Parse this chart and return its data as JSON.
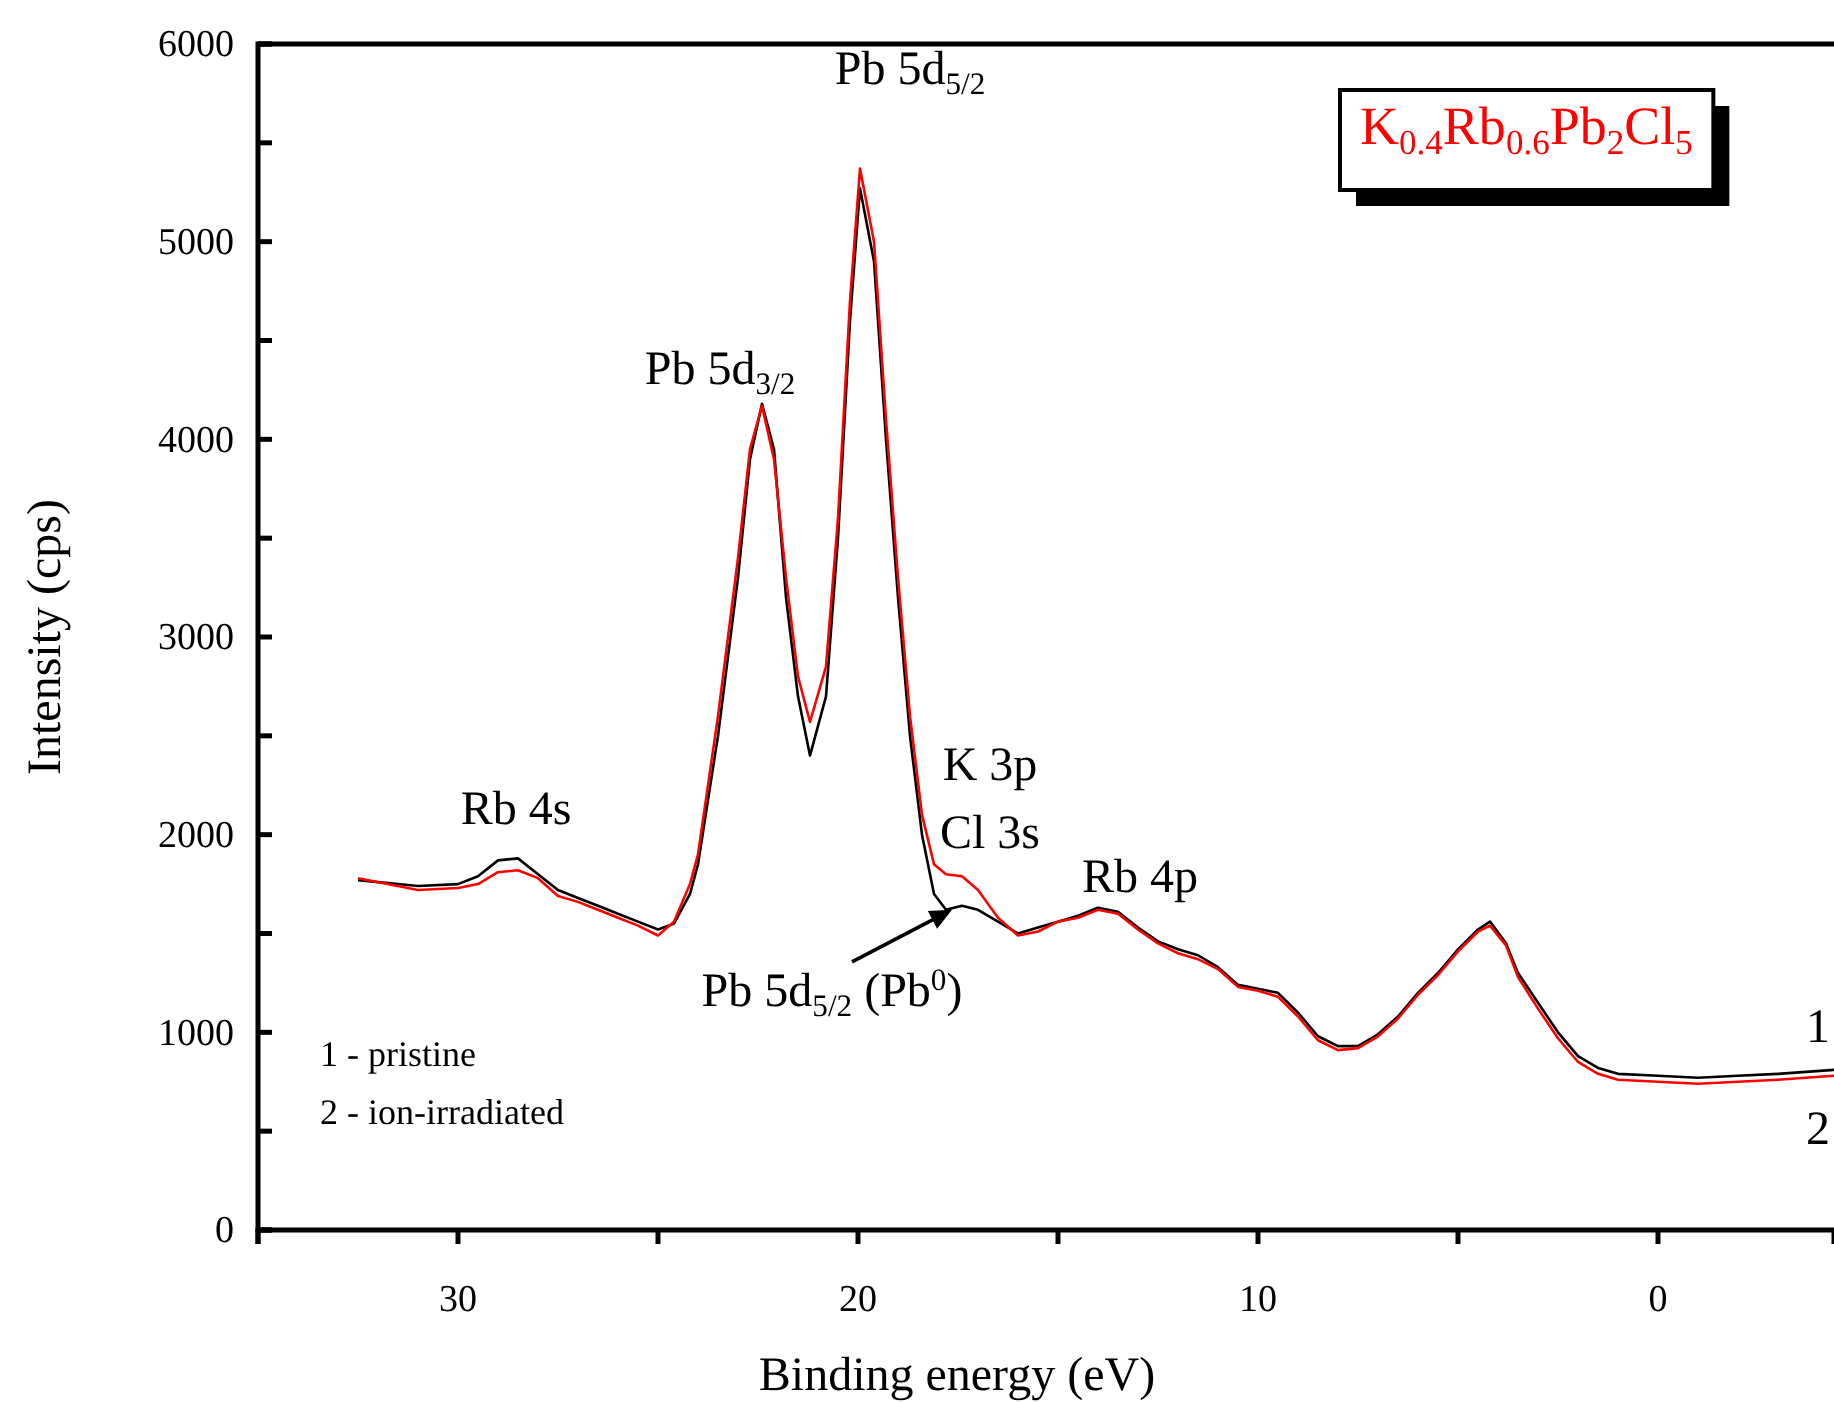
{
  "chart_data": {
    "type": "line",
    "title": "K$_{0.4}$Rb$_{0.6}$Pb$_{2}$Cl$_{5}$",
    "xlabel": "Binding energy (eV)",
    "ylabel": "Intensity (cps)",
    "xlim": [
      35,
      -4.4
    ],
    "xticks": [
      {
        "value": 35,
        "label": null
      },
      30,
      {
        "value": 25,
        "label": null
      },
      20,
      {
        "value": 15,
        "label": null
      },
      10,
      {
        "value": 5,
        "label": null
      },
      0
    ],
    "ylim": [
      0,
      6000
    ],
    "yticks": [
      0,
      {
        "value": 500,
        "label": null
      },
      1000,
      {
        "value": 1500,
        "label": null
      },
      2000,
      {
        "value": 2500,
        "label": null
      },
      3000,
      {
        "value": 3500,
        "label": null
      },
      4000,
      {
        "value": 4500,
        "label": null
      },
      5000,
      {
        "value": 5500,
        "label": null
      },
      6000
    ],
    "grid": false,
    "legend": false,
    "line_style": "solid",
    "marker": "none",
    "x": [
      32.5,
      31,
      30,
      29.5,
      29,
      28.5,
      28,
      27.5,
      27,
      26.5,
      26,
      25.5,
      25,
      24.6,
      24.2,
      24,
      23.5,
      23,
      22.7,
      22.4,
      22.1,
      21.8,
      21.5,
      21.2,
      20.8,
      20.5,
      20.2,
      19.95,
      19.6,
      19.3,
      19,
      18.7,
      18.4,
      18.1,
      17.8,
      17.4,
      17,
      16.5,
      16,
      15.5,
      15,
      14.5,
      14,
      13.5,
      13,
      12.5,
      12,
      11.5,
      11,
      10.5,
      10,
      9.5,
      9,
      8.5,
      8,
      7.5,
      7,
      6.5,
      6,
      5.5,
      5,
      4.5,
      4.2,
      3.8,
      3.5,
      3,
      2.5,
      2,
      1.5,
      1,
      0,
      -1,
      -2,
      -3,
      -4.4
    ],
    "series": [
      {
        "name": "1",
        "color": "#000000",
        "values": [
          1770,
          1740,
          1750,
          1790,
          1870,
          1880,
          1800,
          1720,
          1680,
          1640,
          1600,
          1560,
          1520,
          1550,
          1700,
          1850,
          2500,
          3300,
          3900,
          4180,
          3950,
          3200,
          2700,
          2400,
          2700,
          3500,
          4600,
          5270,
          4900,
          4000,
          3200,
          2500,
          2000,
          1700,
          1620,
          1640,
          1620,
          1560,
          1500,
          1530,
          1560,
          1590,
          1630,
          1610,
          1530,
          1460,
          1420,
          1390,
          1330,
          1240,
          1220,
          1200,
          1100,
          980,
          930,
          930,
          990,
          1080,
          1200,
          1300,
          1420,
          1520,
          1560,
          1450,
          1300,
          1150,
          1000,
          880,
          820,
          790,
          780,
          770,
          780,
          790,
          810
        ]
      },
      {
        "name": "2",
        "color": "#ff0000",
        "values": [
          1780,
          1720,
          1730,
          1750,
          1810,
          1820,
          1780,
          1690,
          1660,
          1620,
          1580,
          1540,
          1490,
          1560,
          1750,
          1900,
          2600,
          3400,
          3950,
          4170,
          3900,
          3300,
          2800,
          2570,
          2850,
          3600,
          4700,
          5370,
          5000,
          4100,
          3300,
          2600,
          2100,
          1850,
          1800,
          1790,
          1720,
          1580,
          1490,
          1510,
          1560,
          1580,
          1620,
          1600,
          1520,
          1450,
          1400,
          1370,
          1320,
          1230,
          1210,
          1180,
          1080,
          960,
          910,
          920,
          980,
          1070,
          1190,
          1290,
          1410,
          1510,
          1540,
          1440,
          1280,
          1120,
          970,
          850,
          790,
          760,
          750,
          740,
          750,
          760,
          780
        ]
      }
    ],
    "annotations": [
      "Rb 4s",
      "Pb 5d$_{3/2}$",
      "Pb 5d$_{5/2}$",
      "K 3p",
      "Cl 3s",
      "Rb 4p",
      {
        "text": "Pb 5d$_{5/2}$ (Pb$^{0}$)",
        "x": 17.65,
        "y": 1620
      },
      "1 - pristine",
      "2 - ion-irradiated"
    ]
  }
}
